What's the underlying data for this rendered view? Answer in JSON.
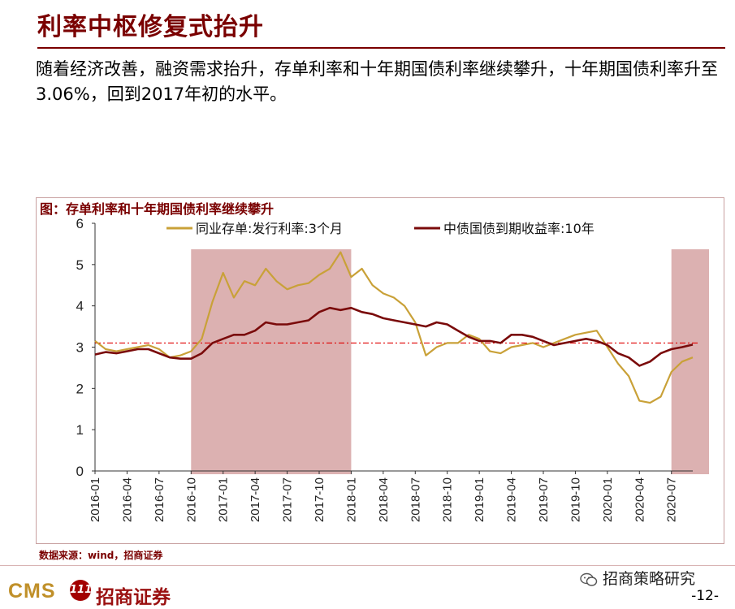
{
  "slide": {
    "title": "利率中枢修复式抬升",
    "body": "随着经济改善，融资需求抬升，存单利率和十年期国债利率继续攀升，十年期国债利率升至3.06%，回到2017年初的水平。",
    "source": "数据来源：wind，招商证券",
    "brand_latin": "CMS",
    "brand_seal": "111",
    "brand_name": "招商证券",
    "wechat": "招商策略研究",
    "page": "-12-"
  },
  "colors": {
    "title": "#7a0000",
    "ncd_line": "#c9a138",
    "bond_line": "#7a0a0a",
    "shade": "#d8a8a8",
    "ref_line": "#e00000"
  },
  "chart_data": {
    "type": "line",
    "title": "图：存单利率和十年期国债利率继续攀升",
    "ylim": [
      0,
      6
    ],
    "yticks": [
      0,
      1,
      2,
      3,
      4,
      5,
      6
    ],
    "xticks": [
      "2016-01",
      "2016-04",
      "2016-07",
      "2016-10",
      "2017-01",
      "2017-04",
      "2017-07",
      "2017-10",
      "2018-01",
      "2018-04",
      "2018-07",
      "2018-10",
      "2019-01",
      "2019-04",
      "2019-07",
      "2019-10",
      "2020-01",
      "2020-04",
      "2020-07"
    ],
    "x": [
      "2016-01",
      "2016-02",
      "2016-03",
      "2016-04",
      "2016-05",
      "2016-06",
      "2016-07",
      "2016-08",
      "2016-09",
      "2016-10",
      "2016-11",
      "2016-12",
      "2017-01",
      "2017-02",
      "2017-03",
      "2017-04",
      "2017-05",
      "2017-06",
      "2017-07",
      "2017-08",
      "2017-09",
      "2017-10",
      "2017-11",
      "2017-12",
      "2018-01",
      "2018-02",
      "2018-03",
      "2018-04",
      "2018-05",
      "2018-06",
      "2018-07",
      "2018-08",
      "2018-09",
      "2018-10",
      "2018-11",
      "2018-12",
      "2019-01",
      "2019-02",
      "2019-03",
      "2019-04",
      "2019-05",
      "2019-06",
      "2019-07",
      "2019-08",
      "2019-09",
      "2019-10",
      "2019-11",
      "2019-12",
      "2020-01",
      "2020-02",
      "2020-03",
      "2020-04",
      "2020-05",
      "2020-06",
      "2020-07",
      "2020-08",
      "2020-09"
    ],
    "series": [
      {
        "name": "同业存单:发行利率:3个月",
        "values": [
          3.15,
          2.95,
          2.9,
          2.95,
          3.0,
          3.05,
          2.95,
          2.75,
          2.8,
          2.9,
          3.2,
          4.1,
          4.8,
          4.2,
          4.6,
          4.5,
          4.9,
          4.6,
          4.4,
          4.5,
          4.55,
          4.75,
          4.9,
          5.3,
          4.7,
          4.9,
          4.5,
          4.3,
          4.2,
          4.0,
          3.6,
          2.8,
          3.0,
          3.1,
          3.1,
          3.3,
          3.2,
          2.9,
          2.85,
          3.0,
          3.05,
          3.1,
          3.0,
          3.1,
          3.2,
          3.3,
          3.35,
          3.4,
          3.0,
          2.6,
          2.3,
          1.7,
          1.65,
          1.8,
          2.4,
          2.65,
          2.75
        ]
      },
      {
        "name": "中债国债到期收益率:10年",
        "values": [
          2.82,
          2.88,
          2.85,
          2.9,
          2.95,
          2.95,
          2.85,
          2.75,
          2.72,
          2.72,
          2.85,
          3.1,
          3.2,
          3.3,
          3.3,
          3.4,
          3.6,
          3.55,
          3.55,
          3.6,
          3.65,
          3.85,
          3.95,
          3.9,
          3.95,
          3.85,
          3.8,
          3.7,
          3.65,
          3.6,
          3.55,
          3.5,
          3.6,
          3.55,
          3.4,
          3.25,
          3.15,
          3.15,
          3.1,
          3.3,
          3.3,
          3.25,
          3.15,
          3.05,
          3.1,
          3.15,
          3.2,
          3.15,
          3.05,
          2.85,
          2.75,
          2.55,
          2.65,
          2.85,
          2.95,
          3.0,
          3.06
        ]
      }
    ],
    "shaded_ranges": [
      [
        "2016-10",
        "2018-01"
      ],
      [
        "2020-07",
        "2020-10"
      ]
    ],
    "reference_line": 3.1,
    "legend_position": "top",
    "grid": false
  }
}
